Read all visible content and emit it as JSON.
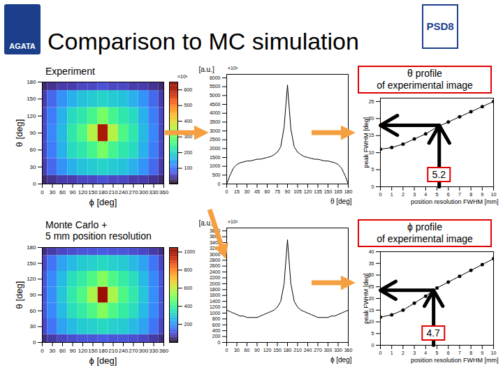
{
  "title": "Comparison to MC simulation",
  "logos": [
    "AGATA",
    "PSD8"
  ],
  "chart_data": [
    {
      "type": "heatmap",
      "title": [
        "Experiment"
      ],
      "xlabel": "ϕ [deg]",
      "ylabel": "θ [deg]",
      "x": [
        0,
        30,
        60,
        90,
        120,
        150,
        180,
        210,
        240,
        270,
        300,
        330,
        360
      ],
      "y": [
        0,
        30,
        60,
        90,
        120,
        150,
        180
      ],
      "cells": [
        [
          20,
          30,
          40,
          40,
          50,
          50,
          60,
          50,
          50,
          40,
          40,
          30,
          20
        ],
        [
          40,
          80,
          120,
          150,
          170,
          180,
          190,
          180,
          170,
          150,
          120,
          80,
          40
        ],
        [
          50,
          100,
          150,
          200,
          220,
          250,
          300,
          250,
          220,
          200,
          150,
          100,
          50
        ],
        [
          50,
          110,
          160,
          220,
          260,
          350,
          600,
          350,
          260,
          220,
          160,
          110,
          50
        ],
        [
          50,
          100,
          150,
          200,
          220,
          250,
          300,
          250,
          220,
          200,
          150,
          100,
          50
        ],
        [
          40,
          80,
          120,
          150,
          170,
          180,
          190,
          180,
          170,
          150,
          120,
          80,
          40
        ],
        [
          20,
          30,
          40,
          40,
          50,
          50,
          60,
          50,
          50,
          40,
          40,
          30,
          20
        ]
      ],
      "xlim": [
        0,
        360
      ],
      "ylim": [
        0,
        180
      ],
      "xticks": [
        0,
        30,
        60,
        90,
        120,
        150,
        180,
        210,
        240,
        270,
        300,
        330,
        360
      ],
      "yticks": [
        0,
        30,
        60,
        90,
        120,
        150,
        180
      ],
      "colorbar": {
        "range": [
          0,
          650
        ],
        "ticks": [
          100,
          200,
          300,
          400,
          500,
          600
        ],
        "label": "×10³"
      }
    },
    {
      "type": "line",
      "xlabel": "θ [deg]",
      "ylabel": "[a.u.]",
      "annotations": [
        "×10³"
      ],
      "color": "#000000",
      "x": [
        0,
        5,
        10,
        15,
        20,
        25,
        30,
        35,
        40,
        45,
        50,
        55,
        60,
        65,
        70,
        75,
        80,
        85,
        90,
        95,
        100,
        105,
        110,
        115,
        120,
        125,
        130,
        135,
        140,
        145,
        150,
        155,
        160,
        165,
        170,
        175,
        180
      ],
      "values": [
        0,
        500,
        900,
        1100,
        1200,
        1250,
        1300,
        1300,
        1350,
        1400,
        1400,
        1450,
        1500,
        1550,
        1650,
        1800,
        2100,
        3200,
        5600,
        3100,
        2100,
        1800,
        1650,
        1550,
        1500,
        1450,
        1400,
        1400,
        1350,
        1300,
        1300,
        1250,
        1200,
        1100,
        900,
        500,
        0
      ],
      "xlim": [
        0,
        180
      ],
      "ylim": [
        0,
        6200
      ],
      "xticks": [
        0,
        15,
        30,
        45,
        60,
        75,
        90,
        105,
        120,
        135,
        150,
        165,
        180
      ],
      "yticks": [
        0,
        500,
        1000,
        1500,
        2000,
        2500,
        3000,
        3500,
        4000,
        4500,
        5000,
        5500,
        6000
      ]
    },
    {
      "type": "line",
      "title": [
        "θ profile",
        "of experimental image"
      ],
      "xlabel": "position resolution FWHM [mm]",
      "ylabel": "peak FWHM [deg]",
      "marker": "circle",
      "color": "#000000",
      "x": [
        0,
        1,
        2,
        3,
        4,
        5,
        6,
        7,
        8,
        9,
        10
      ],
      "values": [
        11,
        11.5,
        12.5,
        14,
        15.5,
        17.5,
        19,
        20.5,
        22,
        23.5,
        25
      ],
      "xlim": [
        0,
        10
      ],
      "ylim": [
        0,
        26
      ],
      "xticks": [
        0,
        1,
        2,
        3,
        4,
        5,
        6,
        7,
        8,
        9,
        10
      ],
      "yticks": [
        0,
        5,
        10,
        15,
        20,
        25
      ],
      "match": {
        "x": 5.2,
        "y": 18
      }
    },
    {
      "type": "heatmap",
      "title": [
        "Monte Carlo +",
        "5 mm position resolution"
      ],
      "xlabel": "ϕ [deg]",
      "ylabel": "θ [deg]",
      "x": [
        0,
        30,
        60,
        90,
        120,
        150,
        180,
        210,
        240,
        270,
        300,
        330,
        360
      ],
      "y": [
        0,
        30,
        60,
        90,
        120,
        150,
        180
      ],
      "cells": [
        [
          40,
          60,
          80,
          90,
          100,
          100,
          110,
          100,
          100,
          90,
          80,
          60,
          40
        ],
        [
          80,
          150,
          220,
          260,
          290,
          300,
          320,
          300,
          290,
          260,
          220,
          150,
          80
        ],
        [
          100,
          180,
          260,
          330,
          370,
          420,
          500,
          420,
          370,
          330,
          260,
          180,
          100
        ],
        [
          100,
          190,
          280,
          360,
          420,
          550,
          1000,
          550,
          420,
          360,
          280,
          190,
          100
        ],
        [
          100,
          180,
          260,
          330,
          370,
          420,
          500,
          420,
          370,
          330,
          260,
          180,
          100
        ],
        [
          80,
          150,
          220,
          260,
          290,
          300,
          320,
          300,
          290,
          260,
          220,
          150,
          80
        ],
        [
          40,
          60,
          80,
          90,
          100,
          100,
          110,
          100,
          100,
          90,
          80,
          60,
          40
        ]
      ],
      "xlim": [
        0,
        360
      ],
      "ylim": [
        0,
        180
      ],
      "xticks": [
        0,
        30,
        60,
        90,
        120,
        150,
        180,
        210,
        240,
        270,
        300,
        330,
        360
      ],
      "yticks": [
        0,
        30,
        60,
        90,
        120,
        150,
        180
      ],
      "colorbar": {
        "range": [
          0,
          1050
        ],
        "ticks": [
          200,
          400,
          600,
          800,
          1000
        ]
      }
    },
    {
      "type": "line",
      "xlabel": "ϕ [deg]",
      "ylabel": "[a.u.]",
      "annotations": [
        "×10³"
      ],
      "color": "#000000",
      "x": [
        0,
        10,
        20,
        30,
        40,
        50,
        60,
        70,
        80,
        90,
        100,
        110,
        120,
        130,
        140,
        150,
        160,
        170,
        180,
        190,
        200,
        210,
        220,
        230,
        240,
        250,
        260,
        270,
        280,
        290,
        300,
        310,
        320,
        330,
        340,
        350,
        360
      ],
      "values": [
        1100,
        1050,
        1000,
        950,
        900,
        900,
        850,
        850,
        850,
        850,
        900,
        950,
        1000,
        1050,
        1100,
        1200,
        1400,
        2000,
        3500,
        2000,
        1400,
        1200,
        1100,
        1050,
        1000,
        950,
        900,
        850,
        850,
        850,
        850,
        900,
        900,
        950,
        1000,
        1050,
        1100
      ],
      "xlim": [
        0,
        360
      ],
      "ylim": [
        0,
        3900
      ],
      "xticks": [
        0,
        30,
        60,
        90,
        120,
        150,
        180,
        210,
        240,
        270,
        300,
        330,
        360
      ],
      "yticks": [
        0,
        200,
        400,
        600,
        800,
        1000,
        1200,
        1400,
        1600,
        1800,
        2000,
        2200,
        2400,
        2600,
        2800,
        3000,
        3200,
        3400,
        3600,
        3800
      ]
    },
    {
      "type": "line",
      "title": [
        "ϕ profile",
        "of experimental image"
      ],
      "xlabel": "position resolution FWHM [mm]",
      "ylabel": "peak FWHM [deg]",
      "marker": "circle",
      "color": "#000000",
      "x": [
        0,
        1,
        2,
        3,
        4,
        5,
        6,
        7,
        8,
        9,
        10
      ],
      "values": [
        12,
        13,
        15,
        18,
        21,
        24.5,
        27,
        29.5,
        32,
        34.5,
        37
      ],
      "xlim": [
        0,
        10
      ],
      "ylim": [
        0,
        40
      ],
      "xticks": [
        0,
        1,
        2,
        3,
        4,
        5,
        6,
        7,
        8,
        9,
        10
      ],
      "yticks": [
        0,
        5,
        10,
        15,
        20,
        25,
        30,
        35,
        40
      ],
      "match": {
        "x": 4.7,
        "y": 23.5
      }
    }
  ]
}
